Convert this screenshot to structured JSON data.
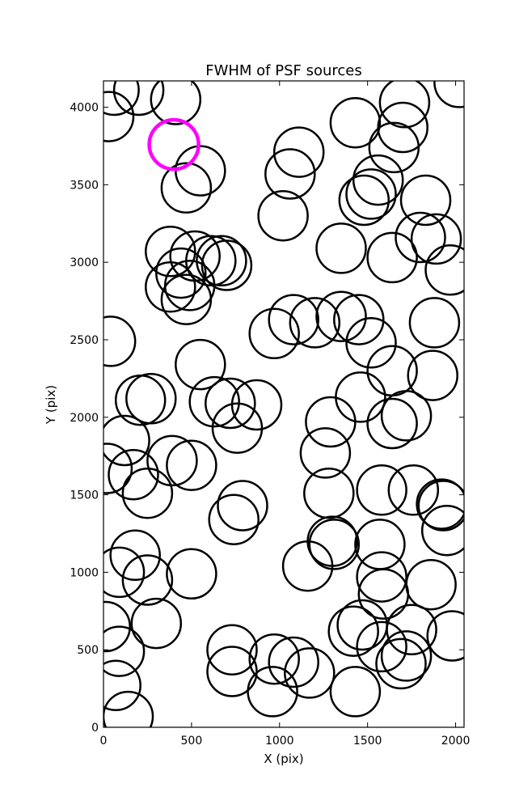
{
  "chart_data": {
    "type": "scatter",
    "title": "FWHM of PSF sources",
    "xlabel": "X (pix)",
    "ylabel": "Y (pix)",
    "xlim": [
      0,
      2048
    ],
    "ylim": [
      0,
      4170
    ],
    "grid": false,
    "xticks": [
      0,
      500,
      1000,
      1500,
      2000
    ],
    "yticks": [
      0,
      500,
      1000,
      1500,
      2000,
      2500,
      3000,
      3500,
      4000
    ],
    "marker_radius": 140,
    "source_color": "#000000",
    "highlight_color": "#ff00ff",
    "sources": [
      {
        "x": 60,
        "y": 4110
      },
      {
        "x": 200,
        "y": 4110
      },
      {
        "x": 410,
        "y": 4050
      },
      {
        "x": 30,
        "y": 3940
      },
      {
        "x": 2020,
        "y": 4160
      },
      {
        "x": 1710,
        "y": 4030
      },
      {
        "x": 1700,
        "y": 3870
      },
      {
        "x": 1430,
        "y": 3900
      },
      {
        "x": 1650,
        "y": 3740
      },
      {
        "x": 1110,
        "y": 3710
      },
      {
        "x": 1060,
        "y": 3570
      },
      {
        "x": 550,
        "y": 3590
      },
      {
        "x": 470,
        "y": 3480
      },
      {
        "x": 1560,
        "y": 3530
      },
      {
        "x": 1480,
        "y": 3400
      },
      {
        "x": 1520,
        "y": 3440
      },
      {
        "x": 1830,
        "y": 3400
      },
      {
        "x": 1020,
        "y": 3300
      },
      {
        "x": 1800,
        "y": 3160
      },
      {
        "x": 1890,
        "y": 3150
      },
      {
        "x": 1350,
        "y": 3090
      },
      {
        "x": 1640,
        "y": 3030
      },
      {
        "x": 1970,
        "y": 2950
      },
      {
        "x": 380,
        "y": 3070
      },
      {
        "x": 520,
        "y": 3040
      },
      {
        "x": 610,
        "y": 3010
      },
      {
        "x": 670,
        "y": 3010
      },
      {
        "x": 700,
        "y": 2980
      },
      {
        "x": 440,
        "y": 2930
      },
      {
        "x": 490,
        "y": 2850
      },
      {
        "x": 380,
        "y": 2840
      },
      {
        "x": 470,
        "y": 2760
      },
      {
        "x": 40,
        "y": 2490
      },
      {
        "x": 970,
        "y": 2540
      },
      {
        "x": 1080,
        "y": 2630
      },
      {
        "x": 1200,
        "y": 2610
      },
      {
        "x": 1350,
        "y": 2650
      },
      {
        "x": 1450,
        "y": 2630
      },
      {
        "x": 1520,
        "y": 2480
      },
      {
        "x": 1880,
        "y": 2610
      },
      {
        "x": 550,
        "y": 2340
      },
      {
        "x": 1640,
        "y": 2300
      },
      {
        "x": 1870,
        "y": 2270
      },
      {
        "x": 1460,
        "y": 2130
      },
      {
        "x": 210,
        "y": 2110
      },
      {
        "x": 270,
        "y": 2120
      },
      {
        "x": 630,
        "y": 2100
      },
      {
        "x": 720,
        "y": 2090
      },
      {
        "x": 870,
        "y": 2080
      },
      {
        "x": 760,
        "y": 1930
      },
      {
        "x": 1720,
        "y": 2010
      },
      {
        "x": 1640,
        "y": 1960
      },
      {
        "x": 1290,
        "y": 1970
      },
      {
        "x": 120,
        "y": 1850
      },
      {
        "x": 20,
        "y": 1670
      },
      {
        "x": 170,
        "y": 1630
      },
      {
        "x": 390,
        "y": 1720
      },
      {
        "x": 500,
        "y": 1690
      },
      {
        "x": 1260,
        "y": 1770
      },
      {
        "x": 250,
        "y": 1510
      },
      {
        "x": 1280,
        "y": 1510
      },
      {
        "x": 1580,
        "y": 1530
      },
      {
        "x": 1760,
        "y": 1530
      },
      {
        "x": 1920,
        "y": 1440
      },
      {
        "x": 1930,
        "y": 1430
      },
      {
        "x": 790,
        "y": 1430
      },
      {
        "x": 740,
        "y": 1340
      },
      {
        "x": 1950,
        "y": 1270
      },
      {
        "x": 1300,
        "y": 1200
      },
      {
        "x": 1310,
        "y": 1180
      },
      {
        "x": 1570,
        "y": 1180
      },
      {
        "x": 180,
        "y": 1110
      },
      {
        "x": 1160,
        "y": 1040
      },
      {
        "x": 90,
        "y": 1000
      },
      {
        "x": 500,
        "y": 990
      },
      {
        "x": 250,
        "y": 950
      },
      {
        "x": 1580,
        "y": 970
      },
      {
        "x": 1860,
        "y": 920
      },
      {
        "x": 1590,
        "y": 860
      },
      {
        "x": 300,
        "y": 670
      },
      {
        "x": 10,
        "y": 650
      },
      {
        "x": 1470,
        "y": 660
      },
      {
        "x": 1420,
        "y": 620
      },
      {
        "x": 1750,
        "y": 630
      },
      {
        "x": 1980,
        "y": 590
      },
      {
        "x": 1580,
        "y": 520
      },
      {
        "x": 1720,
        "y": 460
      },
      {
        "x": 1690,
        "y": 410
      },
      {
        "x": 90,
        "y": 490
      },
      {
        "x": 730,
        "y": 500
      },
      {
        "x": 970,
        "y": 440
      },
      {
        "x": 1080,
        "y": 420
      },
      {
        "x": 730,
        "y": 360
      },
      {
        "x": 1170,
        "y": 350
      },
      {
        "x": 70,
        "y": 270
      },
      {
        "x": 960,
        "y": 230
      },
      {
        "x": 1430,
        "y": 230
      },
      {
        "x": 140,
        "y": 70
      }
    ],
    "highlight": {
      "x": 400,
      "y": 3760
    }
  }
}
